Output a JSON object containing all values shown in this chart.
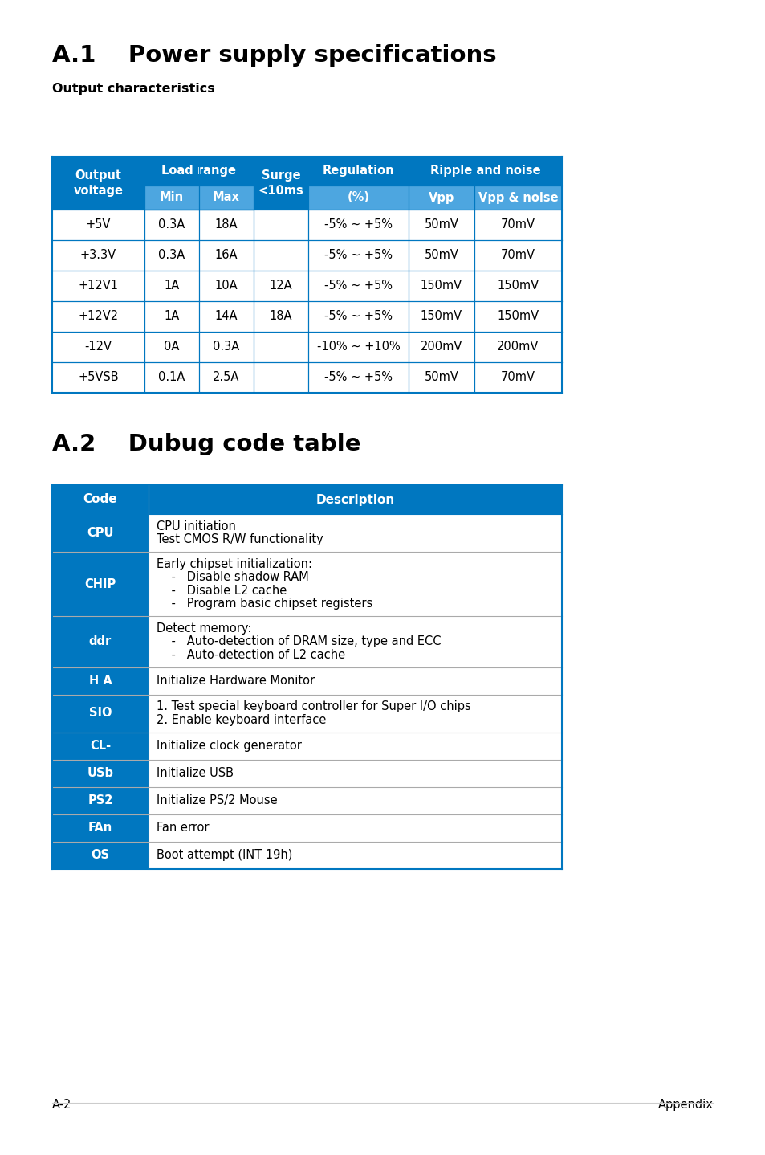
{
  "page_bg": "#ffffff",
  "title1": "A.1    Power supply specifications",
  "subtitle1": "Output characteristics",
  "title2": "A.2    Dubug code table",
  "footer_left": "A-2",
  "footer_right": "Appendix",
  "dark_blue": "#0077C0",
  "light_blue": "#4DA6E0",
  "white": "#ffffff",
  "black": "#000000",
  "gray_line": "#aaaaaa",
  "power_rows": [
    [
      "+5V",
      "0.3A",
      "18A",
      "",
      "-5% ~ +5%",
      "50mV",
      "70mV"
    ],
    [
      "+3.3V",
      "0.3A",
      "16A",
      "",
      "-5% ~ +5%",
      "50mV",
      "70mV"
    ],
    [
      "+12V1",
      "1A",
      "10A",
      "12A",
      "-5% ~ +5%",
      "150mV",
      "150mV"
    ],
    [
      "+12V2",
      "1A",
      "14A",
      "18A",
      "-5% ~ +5%",
      "150mV",
      "150mV"
    ],
    [
      "-12V",
      "0A",
      "0.3A",
      "",
      "-10% ~ +10%",
      "200mV",
      "200mV"
    ],
    [
      "+5VSB",
      "0.1A",
      "2.5A",
      "",
      "-5% ~ +5%",
      "50mV",
      "70mV"
    ]
  ],
  "debug_rows": [
    [
      "CPU",
      [
        "CPU initiation",
        "Test CMOS R/W functionality"
      ]
    ],
    [
      "CHIP",
      [
        "Early chipset initialization:",
        "    -   Disable shadow RAM",
        "    -   Disable L2 cache",
        "    -   Program basic chipset registers"
      ]
    ],
    [
      "ddr",
      [
        "Detect memory:",
        "    -   Auto-detection of DRAM size, type and ECC",
        "    -   Auto-detection of L2 cache"
      ]
    ],
    [
      "H A",
      [
        "Initialize Hardware Monitor"
      ]
    ],
    [
      "SIO",
      [
        "1. Test special keyboard controller for Super I/O chips",
        "2. Enable keyboard interface"
      ]
    ],
    [
      "CL-",
      [
        "Initialize clock generator"
      ]
    ],
    [
      "USb",
      [
        "Initialize USB"
      ]
    ],
    [
      "PS2",
      [
        "Initialize PS/2 Mouse"
      ]
    ],
    [
      "FAn",
      [
        "Fan error"
      ]
    ],
    [
      "OS",
      [
        "Boot attempt (INT 19h)"
      ]
    ]
  ]
}
